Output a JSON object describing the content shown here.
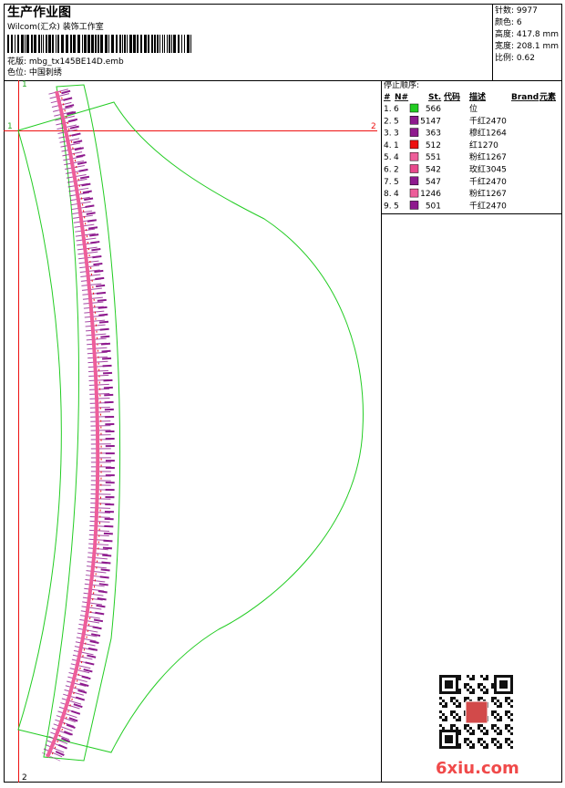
{
  "header": {
    "title": "生产作业图",
    "studio": "Wilcom(汇众) 装饰工作室",
    "design": "花版: mbg_tx145BE14D.emb",
    "colorway": "色位: 中国刺绣"
  },
  "info": [
    "针数: 9977",
    "颜色: 6",
    "高度: 417.8 mm",
    "宽度: 208.1 mm",
    "比例: 0.62"
  ],
  "stop_sequence": {
    "title": "停止顺序:",
    "columns": [
      "#",
      "N#",
      "St.",
      "代码",
      "描述",
      "Brand",
      "元素"
    ],
    "rows": [
      {
        "index": "1.",
        "needle": "6",
        "color": "#22cc22",
        "stitches": 566,
        "description": "位"
      },
      {
        "index": "2.",
        "needle": "5",
        "color": "#8e1a8e",
        "stitches": 5147,
        "description": "千红2470"
      },
      {
        "index": "3.",
        "needle": "3",
        "color": "#8e1a8e",
        "stitches": 363,
        "description": "穆红1264"
      },
      {
        "index": "4.",
        "needle": "1",
        "color": "#ee1111",
        "stitches": 512,
        "description": "红1270"
      },
      {
        "index": "5.",
        "needle": "4",
        "color": "#ee5e9a",
        "stitches": 551,
        "description": "粉红1267"
      },
      {
        "index": "6.",
        "needle": "2",
        "color": "#e84a8c",
        "stitches": 542,
        "description": "玫红3045"
      },
      {
        "index": "7.",
        "needle": "5",
        "color": "#8e1a8e",
        "stitches": 547,
        "description": "千红2470"
      },
      {
        "index": "8.",
        "needle": "4",
        "color": "#ee5e9a",
        "stitches": 1246,
        "description": "粉红1267"
      },
      {
        "index": "9.",
        "needle": "5",
        "color": "#8e1a8e",
        "stitches": 501,
        "description": "千红2470"
      }
    ]
  },
  "markers": {
    "x_start": "1",
    "x_end": "2",
    "y_start": "1",
    "y_end": "2"
  },
  "watermark": "6xiu.com"
}
